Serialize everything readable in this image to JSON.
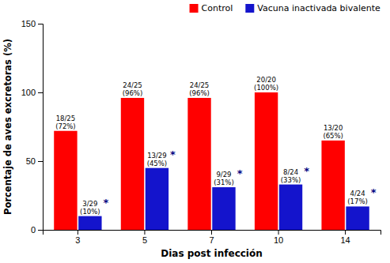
{
  "chart_data": {
    "type": "bar",
    "categories": [
      "3",
      "5",
      "7",
      "10",
      "14"
    ],
    "series": [
      {
        "name": "Control",
        "color": "#FF0000",
        "values": [
          72,
          96,
          96,
          100,
          65
        ],
        "value_labels": [
          "18/25\n(72%)",
          "24/25\n(96%)",
          "24/25\n(96%)",
          "20/20\n(100%)",
          "13/20\n(65%)"
        ]
      },
      {
        "name": "Vacuna inactivada bivalente",
        "color": "#1414CC",
        "values": [
          10,
          45,
          31,
          33,
          17
        ],
        "value_labels": [
          "3/29\n(10%)",
          "13/29\n(45%)",
          "9/29\n(31%)",
          "8/24\n(33%)",
          "4/24\n(17%)"
        ]
      }
    ],
    "annotations": [
      {
        "text": "*",
        "color": "#000080"
      },
      {
        "text": "*",
        "color": "#000080"
      },
      {
        "text": "*",
        "color": "#000080"
      },
      {
        "text": "*",
        "color": "#000080"
      },
      {
        "text": "*",
        "color": "#000080"
      }
    ],
    "x_label": "Dias post infección",
    "y_label": "Porcentaje de aves excretoras (%)",
    "ylim": [
      0,
      150
    ],
    "yticks": [
      0,
      50,
      100,
      150
    ],
    "data_labels": true,
    "legend": "upper right",
    "grid": false
  }
}
